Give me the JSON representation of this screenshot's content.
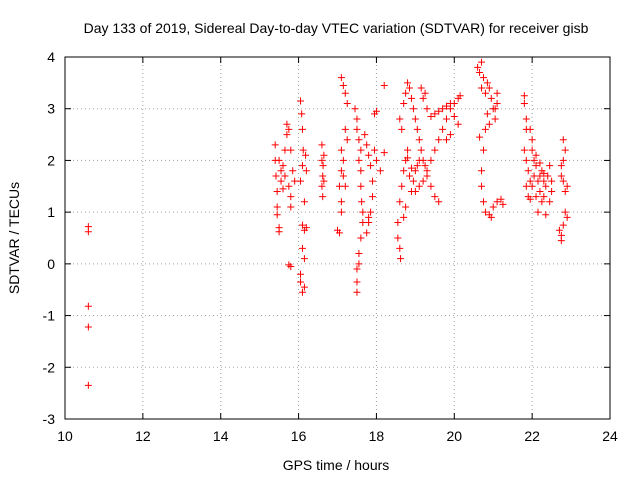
{
  "chart_data": {
    "type": "scatter",
    "title": "Day 133 of 2019, Sidereal Day-to-day VTEC variation (SDTVAR) for receiver gisb",
    "xlabel": "GPS time / hours",
    "ylabel": "SDTVAR / TECUs",
    "xlim": [
      10,
      24
    ],
    "ylim": [
      -3,
      4
    ],
    "xticks": [
      "10",
      "12",
      "14",
      "16",
      "18",
      "20",
      "22",
      "24"
    ],
    "yticks": [
      "-3",
      "-2",
      "-1",
      "0",
      "1",
      "2",
      "3",
      "4"
    ],
    "grid": true,
    "marker": "+",
    "color": "#ff0000",
    "series": [
      {
        "name": "SDTVAR",
        "points": [
          [
            10.6,
            0.72
          ],
          [
            10.6,
            0.62
          ],
          [
            10.6,
            -0.82
          ],
          [
            10.6,
            -1.22
          ],
          [
            10.6,
            -2.35
          ],
          [
            15.4,
            2.3
          ],
          [
            15.4,
            2.0
          ],
          [
            15.42,
            1.7
          ],
          [
            15.45,
            1.4
          ],
          [
            15.45,
            1.1
          ],
          [
            15.45,
            0.95
          ],
          [
            15.5,
            0.7
          ],
          [
            15.5,
            0.62
          ],
          [
            15.55,
            1.6
          ],
          [
            15.6,
            1.9
          ],
          [
            15.65,
            2.2
          ],
          [
            15.7,
            2.5
          ],
          [
            15.7,
            2.7
          ],
          [
            15.75,
            2.6
          ],
          [
            15.75,
            1.5
          ],
          [
            15.8,
            1.3
          ],
          [
            15.8,
            1.1
          ],
          [
            15.6,
            1.45
          ],
          [
            15.65,
            1.7
          ],
          [
            15.8,
            2.2
          ],
          [
            15.85,
            1.8
          ],
          [
            15.9,
            1.6
          ],
          [
            15.75,
            -0.02
          ],
          [
            15.8,
            -0.05
          ],
          [
            15.55,
            1.8
          ],
          [
            15.5,
            2.0
          ],
          [
            16.05,
            3.15
          ],
          [
            16.08,
            2.9
          ],
          [
            16.1,
            2.6
          ],
          [
            16.12,
            2.2
          ],
          [
            16.1,
            1.9
          ],
          [
            16.05,
            1.6
          ],
          [
            16.15,
            1.2
          ],
          [
            16.1,
            0.75
          ],
          [
            16.15,
            0.65
          ],
          [
            16.1,
            0.3
          ],
          [
            16.05,
            -0.35
          ],
          [
            16.1,
            -0.55
          ],
          [
            16.15,
            -0.45
          ],
          [
            16.05,
            -0.2
          ],
          [
            16.15,
            0.1
          ],
          [
            16.2,
            0.7
          ],
          [
            16.2,
            1.8
          ],
          [
            16.18,
            2.1
          ],
          [
            16.6,
            2.3
          ],
          [
            16.6,
            2.0
          ],
          [
            16.62,
            1.7
          ],
          [
            16.6,
            1.5
          ],
          [
            16.62,
            1.3
          ],
          [
            16.65,
            1.6
          ],
          [
            16.65,
            2.1
          ],
          [
            16.63,
            1.9
          ],
          [
            17.0,
            0.65
          ],
          [
            17.05,
            0.6
          ],
          [
            17.1,
            1.0
          ],
          [
            17.1,
            1.2
          ],
          [
            17.05,
            1.5
          ],
          [
            17.1,
            1.8
          ],
          [
            17.15,
            2.0
          ],
          [
            17.1,
            2.2
          ],
          [
            17.1,
            3.6
          ],
          [
            17.15,
            3.45
          ],
          [
            17.2,
            3.3
          ],
          [
            17.25,
            3.1
          ],
          [
            17.2,
            2.6
          ],
          [
            17.25,
            2.4
          ],
          [
            17.15,
            1.7
          ],
          [
            17.2,
            1.5
          ],
          [
            17.45,
            3.0
          ],
          [
            17.5,
            2.8
          ],
          [
            17.5,
            2.6
          ],
          [
            17.55,
            2.4
          ],
          [
            17.6,
            2.2
          ],
          [
            17.55,
            2.0
          ],
          [
            17.6,
            1.8
          ],
          [
            17.6,
            1.5
          ],
          [
            17.62,
            1.2
          ],
          [
            17.65,
            1.0
          ],
          [
            17.65,
            0.8
          ],
          [
            17.6,
            0.5
          ],
          [
            17.55,
            0.2
          ],
          [
            17.5,
            -0.1
          ],
          [
            17.5,
            -0.35
          ],
          [
            17.5,
            -0.55
          ],
          [
            17.55,
            0.0
          ],
          [
            17.7,
            2.5
          ],
          [
            17.75,
            2.3
          ],
          [
            17.8,
            2.1
          ],
          [
            17.85,
            1.9
          ],
          [
            17.9,
            1.6
          ],
          [
            17.9,
            1.3
          ],
          [
            17.85,
            1.0
          ],
          [
            17.8,
            0.8
          ],
          [
            17.8,
            0.9
          ],
          [
            17.75,
            0.6
          ],
          [
            17.95,
            2.2
          ],
          [
            18.0,
            2.0
          ],
          [
            18.0,
            2.95
          ],
          [
            17.95,
            2.9
          ],
          [
            18.2,
            3.45
          ],
          [
            18.2,
            2.15
          ],
          [
            18.1,
            1.8
          ],
          [
            18.55,
            0.8
          ],
          [
            18.55,
            0.5
          ],
          [
            18.6,
            0.3
          ],
          [
            18.62,
            0.1
          ],
          [
            18.6,
            1.2
          ],
          [
            18.65,
            1.5
          ],
          [
            18.7,
            1.8
          ],
          [
            18.75,
            2.0
          ],
          [
            18.8,
            2.2
          ],
          [
            18.85,
            1.7
          ],
          [
            18.9,
            1.4
          ],
          [
            18.75,
            1.1
          ],
          [
            18.7,
            0.9
          ],
          [
            18.6,
            2.8
          ],
          [
            18.65,
            2.6
          ],
          [
            18.7,
            3.1
          ],
          [
            18.75,
            3.3
          ],
          [
            18.8,
            3.5
          ],
          [
            18.85,
            3.4
          ],
          [
            18.9,
            3.2
          ],
          [
            18.95,
            3.0
          ],
          [
            19.0,
            2.8
          ],
          [
            19.05,
            2.6
          ],
          [
            19.1,
            2.4
          ],
          [
            19.15,
            2.2
          ],
          [
            19.2,
            2.0
          ],
          [
            19.25,
            1.9
          ],
          [
            19.3,
            1.7
          ],
          [
            19.4,
            1.5
          ],
          [
            19.5,
            1.3
          ],
          [
            19.6,
            1.2
          ],
          [
            19.0,
            1.8
          ],
          [
            19.05,
            1.9
          ],
          [
            19.1,
            2.0
          ],
          [
            19.2,
            1.6
          ],
          [
            19.3,
            1.8
          ],
          [
            19.4,
            2.0
          ],
          [
            19.5,
            2.2
          ],
          [
            19.6,
            2.4
          ],
          [
            19.7,
            2.6
          ],
          [
            19.8,
            2.8
          ],
          [
            19.9,
            3.0
          ],
          [
            20.0,
            3.1
          ],
          [
            20.1,
            3.2
          ],
          [
            20.15,
            3.25
          ],
          [
            19.2,
            3.2
          ],
          [
            19.3,
            3.0
          ],
          [
            19.4,
            2.85
          ],
          [
            19.5,
            2.9
          ],
          [
            19.6,
            2.95
          ],
          [
            19.7,
            3.0
          ],
          [
            19.8,
            3.05
          ],
          [
            19.9,
            3.1
          ],
          [
            20.0,
            2.85
          ],
          [
            20.1,
            2.7
          ],
          [
            19.8,
            2.4
          ],
          [
            19.9,
            2.5
          ],
          [
            18.95,
            1.6
          ],
          [
            19.0,
            1.4
          ],
          [
            19.1,
            1.5
          ],
          [
            18.8,
            2.05
          ],
          [
            18.9,
            1.85
          ],
          [
            19.15,
            3.4
          ],
          [
            19.25,
            3.3
          ],
          [
            20.6,
            3.8
          ],
          [
            20.65,
            3.7
          ],
          [
            20.7,
            3.9
          ],
          [
            20.75,
            3.6
          ],
          [
            20.7,
            3.4
          ],
          [
            20.8,
            3.3
          ],
          [
            20.85,
            3.5
          ],
          [
            20.9,
            3.4
          ],
          [
            20.95,
            3.2
          ],
          [
            21.0,
            3.0
          ],
          [
            21.05,
            2.8
          ],
          [
            21.1,
            3.3
          ],
          [
            21.1,
            3.1
          ],
          [
            21.05,
            3.0
          ],
          [
            20.8,
            2.6
          ],
          [
            20.75,
            2.2
          ],
          [
            20.7,
            1.8
          ],
          [
            20.7,
            1.5
          ],
          [
            20.75,
            1.2
          ],
          [
            20.8,
            1.0
          ],
          [
            20.9,
            0.95
          ],
          [
            21.0,
            1.1
          ],
          [
            21.1,
            1.2
          ],
          [
            21.2,
            1.25
          ],
          [
            21.25,
            1.15
          ],
          [
            20.85,
            2.9
          ],
          [
            20.9,
            2.7
          ],
          [
            20.65,
            2.45
          ],
          [
            20.95,
            0.9
          ],
          [
            21.8,
            3.25
          ],
          [
            21.8,
            3.1
          ],
          [
            21.85,
            2.8
          ],
          [
            21.85,
            2.6
          ],
          [
            21.8,
            2.2
          ],
          [
            21.85,
            2.0
          ],
          [
            21.9,
            1.8
          ],
          [
            21.95,
            1.6
          ],
          [
            22.0,
            1.5
          ],
          [
            22.05,
            1.7
          ],
          [
            22.1,
            1.9
          ],
          [
            22.15,
            1.6
          ],
          [
            22.2,
            1.4
          ],
          [
            22.25,
            1.2
          ],
          [
            22.3,
            1.3
          ],
          [
            22.35,
            1.5
          ],
          [
            22.4,
            1.7
          ],
          [
            22.45,
            1.9
          ],
          [
            22.5,
            1.6
          ],
          [
            22.5,
            1.4
          ],
          [
            22.45,
            1.2
          ],
          [
            22.35,
            0.95
          ],
          [
            21.9,
            1.3
          ],
          [
            21.95,
            1.25
          ],
          [
            22.0,
            2.2
          ],
          [
            22.05,
            2.0
          ],
          [
            22.1,
            1.3
          ],
          [
            22.15,
            1.0
          ],
          [
            22.2,
            1.7
          ],
          [
            22.25,
            1.8
          ],
          [
            22.3,
            1.6
          ],
          [
            21.95,
            2.6
          ],
          [
            22.0,
            2.4
          ],
          [
            22.1,
            2.1
          ],
          [
            22.2,
            1.95
          ],
          [
            22.3,
            1.75
          ],
          [
            21.85,
            1.5
          ],
          [
            22.7,
            0.65
          ],
          [
            22.75,
            0.55
          ],
          [
            22.75,
            0.45
          ],
          [
            22.8,
            0.75
          ],
          [
            22.8,
            1.6
          ],
          [
            22.85,
            1.4
          ],
          [
            22.8,
            2.0
          ],
          [
            22.85,
            2.2
          ],
          [
            22.8,
            2.4
          ],
          [
            22.75,
            1.9
          ],
          [
            22.9,
            1.5
          ],
          [
            22.9,
            0.9
          ],
          [
            22.85,
            1.0
          ],
          [
            22.75,
            1.7
          ]
        ]
      }
    ]
  }
}
